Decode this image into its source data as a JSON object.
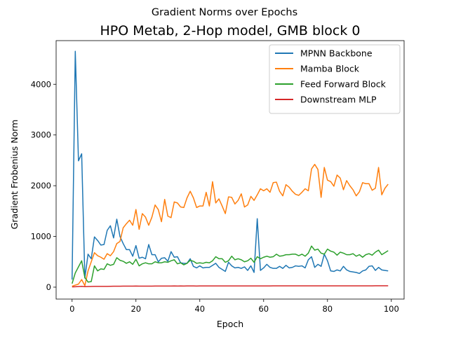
{
  "chart_data": {
    "type": "line",
    "suptitle": "Gradient Norms over Epochs",
    "title": "HPO Metab, 2-Hop model, GMB block 0",
    "xlabel": "Epoch",
    "ylabel": "Gradient Frobenius Norm",
    "xlim": [
      -5,
      104
    ],
    "ylim": [
      -235,
      4860
    ],
    "xticks": [
      0,
      20,
      40,
      60,
      80,
      100
    ],
    "yticks": [
      0,
      1000,
      2000,
      3000,
      4000
    ],
    "grid": false,
    "legend_position": "top-right",
    "series": [
      {
        "name": "MPNN Backbone",
        "color": "#1f77b4",
        "values": [
          150,
          4650,
          2490,
          2630,
          180,
          650,
          560,
          990,
          920,
          830,
          840,
          1120,
          1210,
          970,
          1340,
          1000,
          860,
          740,
          740,
          610,
          820,
          570,
          590,
          560,
          840,
          640,
          640,
          500,
          570,
          580,
          510,
          700,
          590,
          600,
          480,
          470,
          470,
          560,
          410,
          380,
          420,
          380,
          390,
          390,
          430,
          470,
          390,
          350,
          310,
          490,
          420,
          380,
          390,
          370,
          400,
          330,
          420,
          290,
          1350,
          330,
          380,
          450,
          390,
          370,
          370,
          410,
          370,
          430,
          380,
          390,
          420,
          410,
          420,
          380,
          540,
          600,
          390,
          450,
          410,
          650,
          520,
          320,
          310,
          340,
          320,
          410,
          340,
          310,
          300,
          290,
          270,
          320,
          340,
          410,
          420,
          330,
          390,
          340,
          330,
          320
        ]
      },
      {
        "name": "Mamba Block",
        "color": "#ff7f0e",
        "values": [
          20,
          40,
          60,
          150,
          30,
          320,
          500,
          680,
          620,
          590,
          550,
          660,
          620,
          700,
          860,
          900,
          1170,
          1250,
          1320,
          1220,
          1530,
          1140,
          1450,
          1380,
          1220,
          1380,
          1620,
          1530,
          1290,
          1730,
          1400,
          1370,
          1680,
          1660,
          1580,
          1570,
          1760,
          1890,
          1760,
          1570,
          1600,
          1600,
          1870,
          1600,
          2080,
          1660,
          1740,
          1600,
          1450,
          1780,
          1770,
          1640,
          1710,
          1840,
          1580,
          1620,
          1790,
          1710,
          1820,
          1940,
          1900,
          1940,
          1870,
          2060,
          2070,
          1890,
          1800,
          2020,
          1970,
          1890,
          1830,
          1810,
          1870,
          1940,
          1900,
          2330,
          2420,
          2320,
          1770,
          2360,
          2110,
          2080,
          1990,
          2210,
          2150,
          1920,
          2100,
          2000,
          1920,
          1800,
          1880,
          2060,
          2040,
          2040,
          1910,
          1950,
          2360,
          1820,
          1950,
          2030
        ]
      },
      {
        "name": "Feed Forward Block",
        "color": "#2ca02c",
        "values": [
          70,
          280,
          400,
          520,
          190,
          100,
          110,
          420,
          320,
          360,
          350,
          460,
          430,
          450,
          580,
          530,
          510,
          470,
          500,
          450,
          550,
          420,
          460,
          480,
          460,
          460,
          500,
          480,
          480,
          500,
          490,
          520,
          540,
          460,
          480,
          440,
          470,
          530,
          510,
          470,
          480,
          470,
          490,
          480,
          520,
          600,
          560,
          560,
          490,
          520,
          610,
          540,
          560,
          540,
          500,
          520,
          570,
          490,
          600,
          560,
          590,
          610,
          590,
          600,
          650,
          610,
          620,
          640,
          640,
          650,
          650,
          620,
          650,
          610,
          670,
          810,
          730,
          750,
          670,
          650,
          750,
          710,
          690,
          630,
          690,
          670,
          640,
          640,
          660,
          610,
          640,
          590,
          640,
          660,
          630,
          690,
          730,
          640,
          680,
          720
        ]
      },
      {
        "name": "Downstream MLP",
        "color": "#d62728",
        "values": [
          5,
          8,
          12,
          15,
          10,
          12,
          14,
          16,
          16,
          15,
          15,
          16,
          17,
          18,
          19,
          19,
          20,
          20,
          21,
          20,
          22,
          20,
          21,
          21,
          21,
          21,
          22,
          22,
          22,
          22,
          22,
          22,
          23,
          22,
          23,
          22,
          23,
          23,
          23,
          22,
          23,
          23,
          23,
          23,
          23,
          24,
          24,
          24,
          23,
          24,
          24,
          24,
          24,
          24,
          24,
          24,
          24,
          24,
          24,
          24,
          24,
          24,
          24,
          25,
          25,
          25,
          25,
          25,
          25,
          25,
          25,
          25,
          25,
          25,
          25,
          26,
          26,
          26,
          25,
          26,
          26,
          26,
          26,
          26,
          26,
          26,
          26,
          26,
          26,
          26,
          26,
          26,
          26,
          26,
          26,
          27,
          27,
          27,
          27,
          27
        ]
      }
    ]
  }
}
